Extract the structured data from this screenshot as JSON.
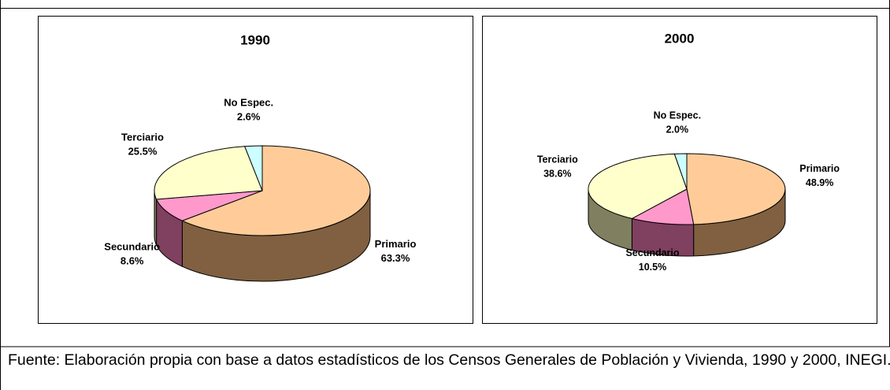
{
  "chart_data": [
    {
      "type": "pie",
      "title": "1990",
      "categories": [
        "Primario",
        "Secundario",
        "Terciario",
        "No Espec."
      ],
      "values": [
        63.3,
        8.6,
        25.5,
        2.6
      ],
      "value_labels": [
        "63.3%",
        "8.6%",
        "25.5%",
        "2.6%"
      ],
      "colors": [
        "#ffcc99",
        "#ff99cc",
        "#ffffcc",
        "#ccffff"
      ],
      "side_colors": [
        "#806040",
        "#804060",
        "#808060",
        "#608080"
      ]
    },
    {
      "type": "pie",
      "title": "2000",
      "categories": [
        "Primario",
        "Secundario",
        "Terciario",
        "No Espec."
      ],
      "values": [
        48.9,
        10.5,
        38.6,
        2.0
      ],
      "value_labels": [
        "48.9%",
        "10.5%",
        "38.6%",
        "2.0%"
      ],
      "colors": [
        "#ffcc99",
        "#ff99cc",
        "#ffffcc",
        "#ccffff"
      ],
      "side_colors": [
        "#806040",
        "#804060",
        "#808060",
        "#608080"
      ]
    }
  ],
  "source": "Fuente: Elaboración propia con base a datos estadísticos de los Censos Generales de Población y Vivienda, 1990 y 2000, INEGI."
}
